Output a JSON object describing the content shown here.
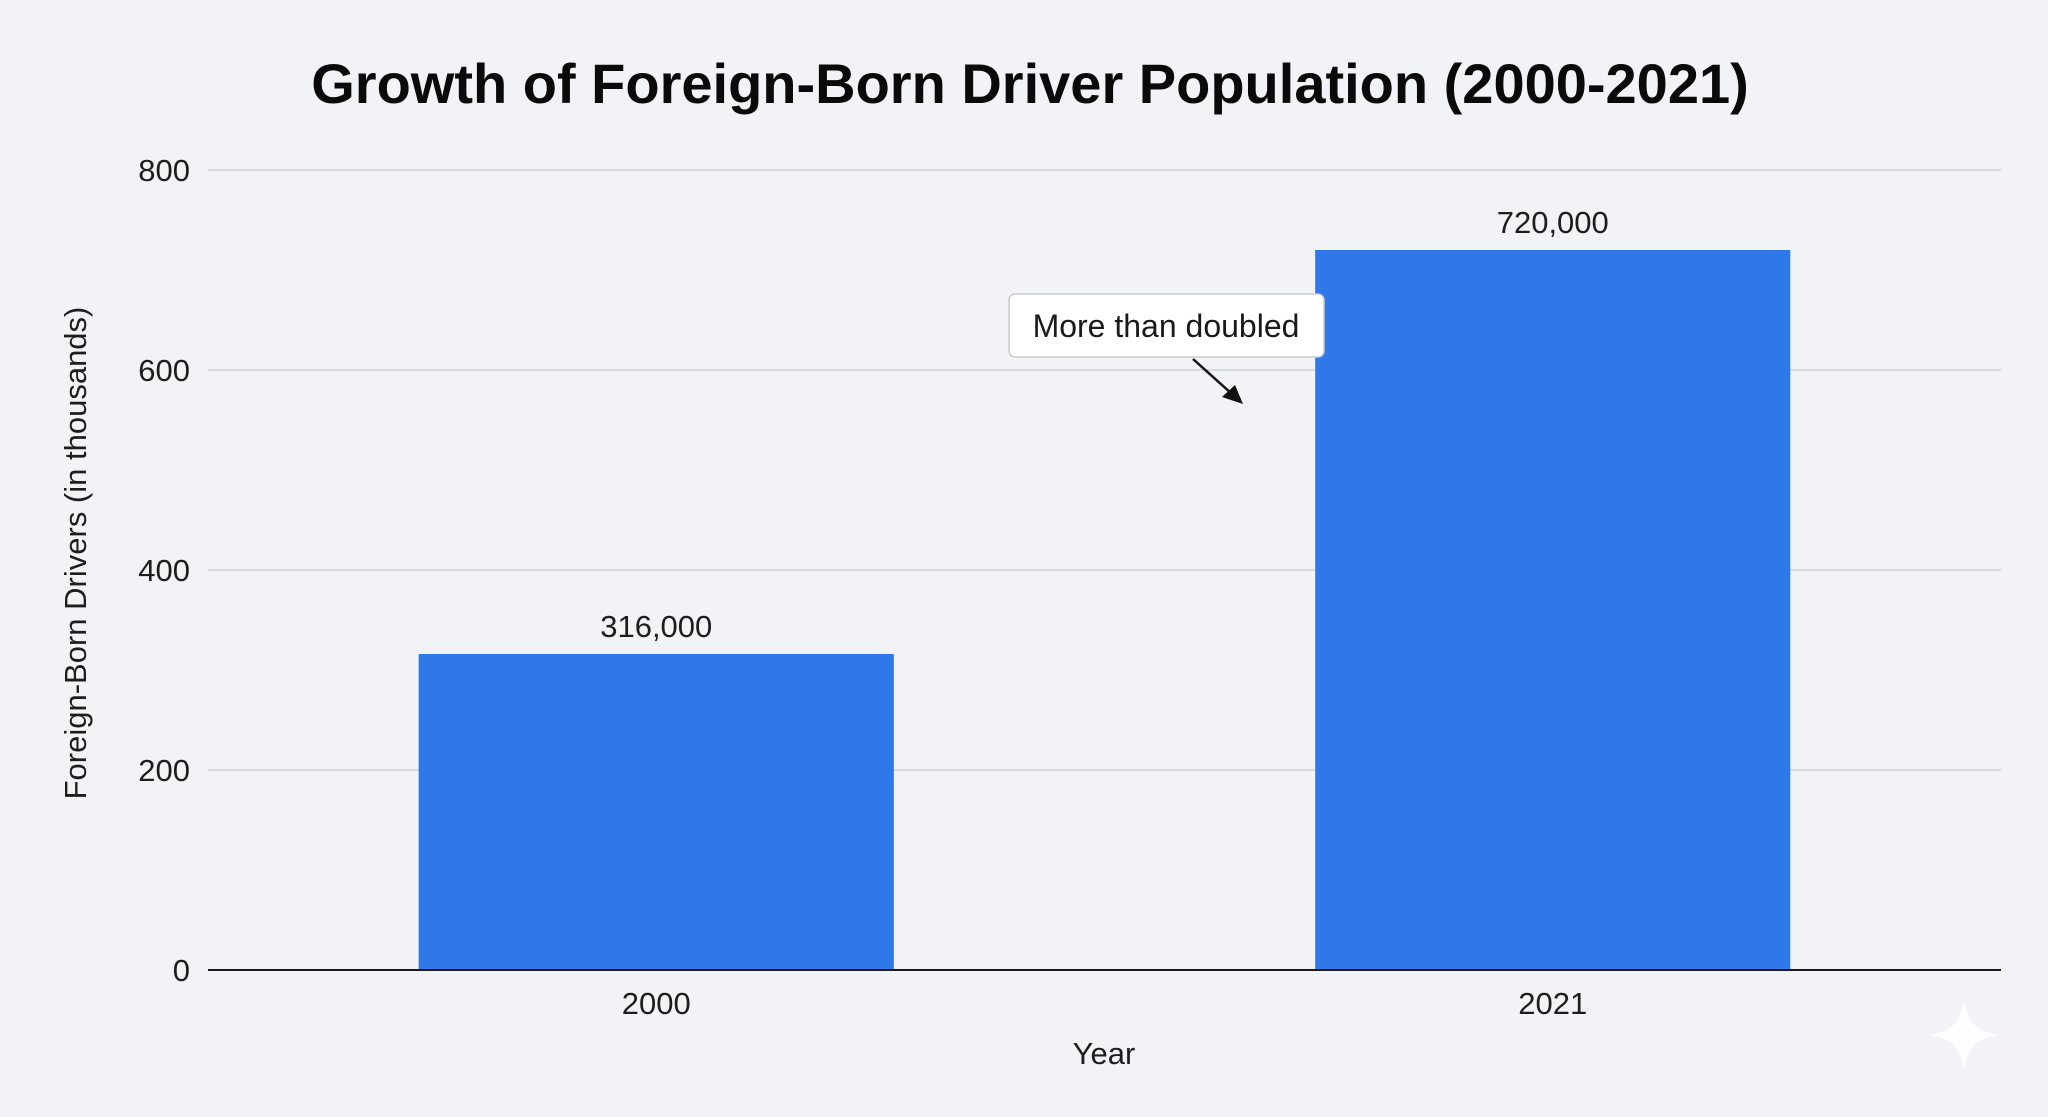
{
  "chart_data": {
    "type": "bar",
    "title": "Growth of Foreign-Born Driver Population (2000-2021)",
    "xlabel": "Year",
    "ylabel": "Foreign-Born Drivers (in thousands)",
    "categories": [
      "2000",
      "2021"
    ],
    "values": [
      316,
      720
    ],
    "data_labels": [
      "316,000",
      "720,000"
    ],
    "ylim": [
      0,
      800
    ],
    "yticks": [
      0,
      200,
      400,
      600,
      800
    ],
    "grid": true,
    "legend": "none",
    "annotation": {
      "text": "More than doubled",
      "target_category": "2021"
    },
    "colors": {
      "bar": "#2e78ea",
      "grid": "#cdd3d9",
      "axis": "#1a1a1a",
      "background": "#f1f3f6"
    }
  }
}
